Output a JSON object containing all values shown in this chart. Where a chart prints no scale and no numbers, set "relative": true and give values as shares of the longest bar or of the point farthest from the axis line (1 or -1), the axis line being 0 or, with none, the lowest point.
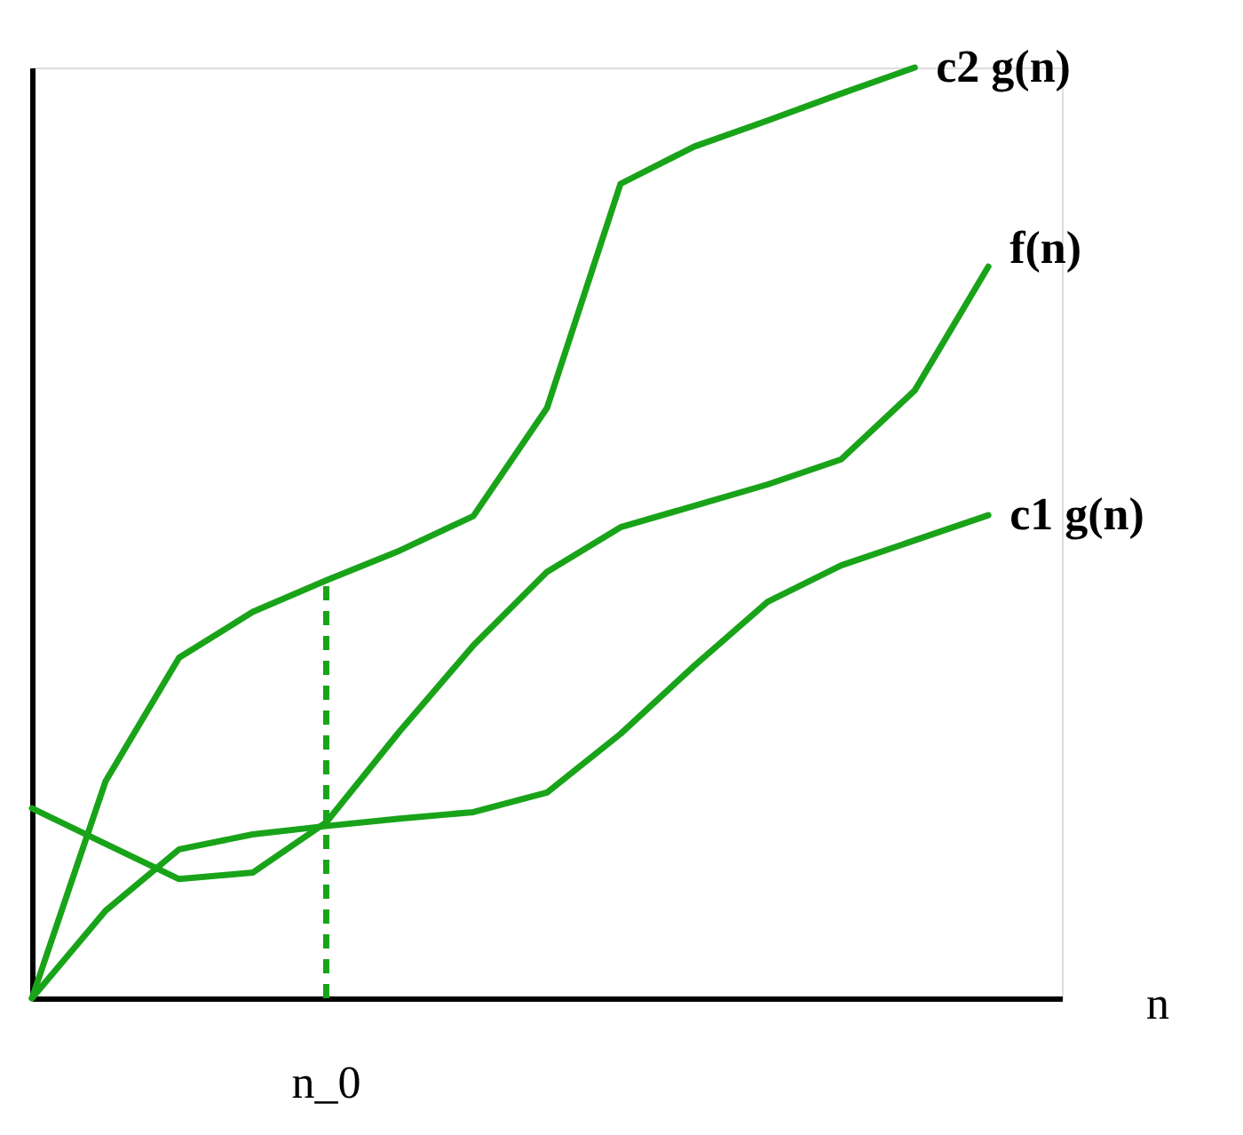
{
  "chart_data": {
    "type": "line",
    "relative": true,
    "xlabel": "n",
    "categories": [
      null,
      null,
      null,
      null,
      null,
      null,
      null,
      null,
      null,
      null,
      null,
      null,
      null,
      null,
      null
    ],
    "grid": false,
    "legend": false,
    "annotations": [
      "n_0"
    ],
    "marker": "none",
    "line_style": "solid",
    "series": [
      {
        "name": "c2 g(n)",
        "color": "#19a319",
        "values": [
          0,
          0.233,
          0.366,
          0.415,
          0.449,
          0.481,
          0.518,
          0.634,
          0.875,
          0.915,
          0.943,
          0.972,
          1.0,
          null,
          null
        ]
      },
      {
        "name": "f(n)",
        "color": "#19a319",
        "values": [
          0.204,
          0.166,
          0.128,
          0.135,
          0.189,
          0.287,
          0.379,
          0.458,
          0.506,
          0.529,
          0.552,
          0.579,
          0.653,
          0.786,
          null
        ]
      },
      {
        "name": "c1 g(n)",
        "color": "#19a319",
        "values": [
          0,
          0.094,
          0.16,
          0.176,
          0.185,
          0.193,
          0.2,
          0.221,
          0.284,
          0.357,
          0.426,
          0.465,
          0.492,
          0.519,
          null
        ]
      }
    ]
  }
}
